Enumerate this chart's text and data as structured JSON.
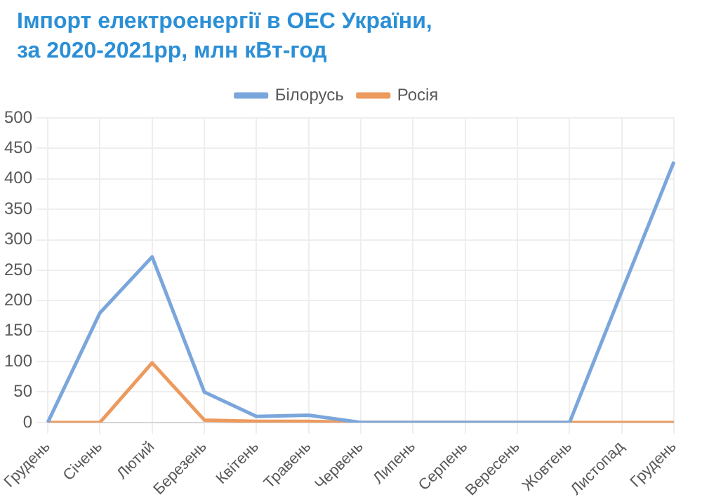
{
  "chart_data": {
    "type": "line",
    "title": "Імпорт електроенергії в ОЕС України,\nза 2020-2021рр, млн кВт-год",
    "categories": [
      "Грудень",
      "Січень",
      "Лютий",
      "Березень",
      "Квітень",
      "Травень",
      "Червень",
      "Липень",
      "Серпень",
      "Вересень",
      "Жовтень",
      "Листопад",
      "Грудень"
    ],
    "series": [
      {
        "name": "Білорусь",
        "color": "#7aa6dc",
        "values": [
          0,
          180,
          272,
          50,
          10,
          12,
          0,
          0,
          0,
          0,
          0,
          215,
          428
        ]
      },
      {
        "name": "Росія",
        "color": "#ed9a5e",
        "values": [
          0,
          0,
          98,
          4,
          2,
          2,
          0,
          0,
          0,
          0,
          0,
          0,
          0
        ]
      }
    ],
    "ylim": [
      0,
      500
    ],
    "yticks": [
      0,
      50,
      100,
      150,
      200,
      250,
      300,
      350,
      400,
      450,
      500
    ],
    "grid": true,
    "legend": "top",
    "marker": "none",
    "line_style": "solid"
  }
}
